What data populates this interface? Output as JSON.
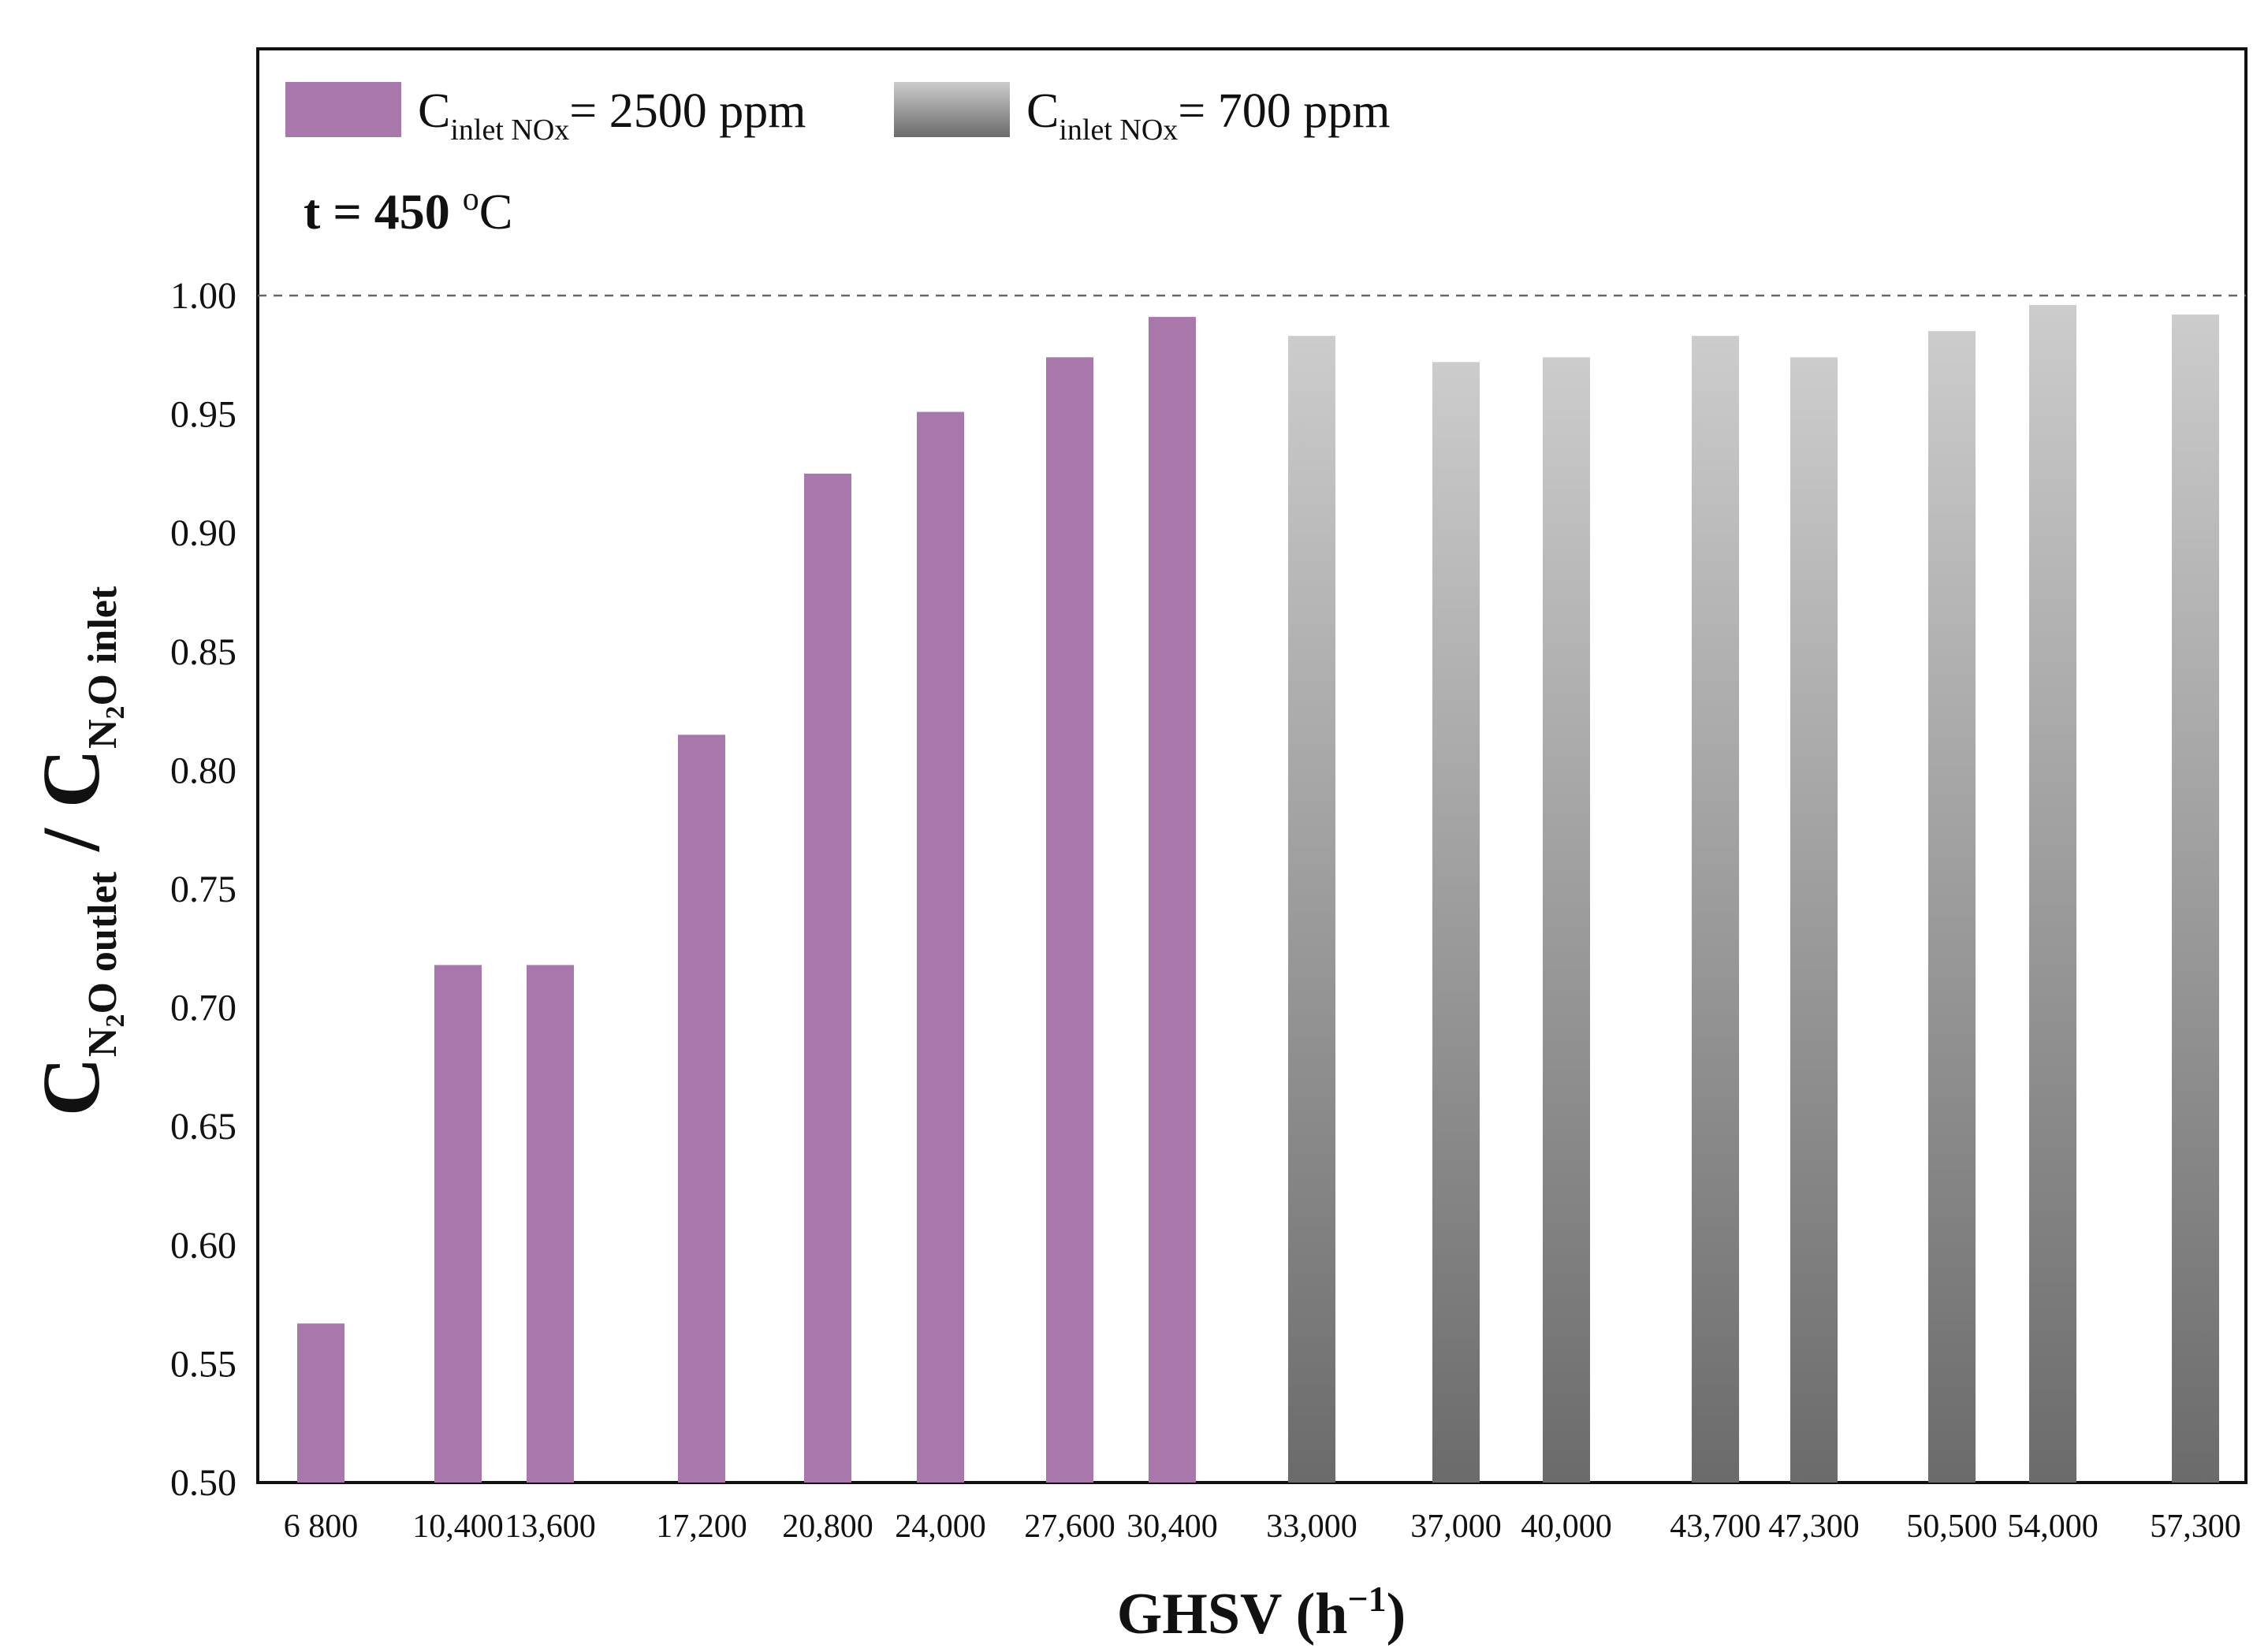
{
  "chart_data": {
    "type": "bar",
    "annotation": {
      "prefix": "t = 450 ",
      "degree": "o",
      "unit": "C"
    },
    "xlabel": {
      "prefix": "GHSV (h",
      "sup": "−1",
      "suffix": ")"
    },
    "ylabel": {
      "c1": "C",
      "sub1_a": "N",
      "sub1_2": "2",
      "sub1_b": "O outlet",
      "slash": " / ",
      "c2": "C",
      "sub2_a": "N",
      "sub2_2": "2",
      "sub2_b": "O inlet"
    },
    "ylim": [
      0.5,
      1.0
    ],
    "yticks": [
      "0.50",
      "0.55",
      "0.60",
      "0.65",
      "0.70",
      "0.75",
      "0.80",
      "0.85",
      "0.90",
      "0.95",
      "1.00"
    ],
    "reference_line": 1.0,
    "categories": [
      "6 800",
      "10,400",
      "13,600",
      "17,200",
      "20,800",
      "24,000",
      "27,600",
      "30,400",
      "33,000",
      "37,000",
      "40,000",
      "43,700",
      "47,300",
      "50,500",
      "54,000",
      "57,300"
    ],
    "series": [
      {
        "name": "Cinlet NOx = 2500 ppm",
        "legend": {
          "c": "C",
          "sub": "inlet NOx",
          "rest": "= 2500 ppm"
        },
        "color": "#a878ad",
        "style": "solid",
        "values": [
          0.567,
          0.718,
          0.718,
          0.815,
          0.925,
          0.951,
          0.974,
          0.991,
          null,
          null,
          null,
          null,
          null,
          null,
          null,
          null
        ]
      },
      {
        "name": "Cinlet NOx = 700 ppm",
        "legend": {
          "c": "C",
          "sub": "inlet NOx",
          "rest": "= 700 ppm"
        },
        "color_top": "#cccccc",
        "color_bottom": "#6b6b6b",
        "style": "gradient",
        "values": [
          null,
          null,
          null,
          null,
          null,
          null,
          null,
          0.98,
          0.983,
          0.972,
          0.974,
          0.983,
          0.974,
          0.985,
          0.996,
          0.992
        ]
      }
    ]
  }
}
